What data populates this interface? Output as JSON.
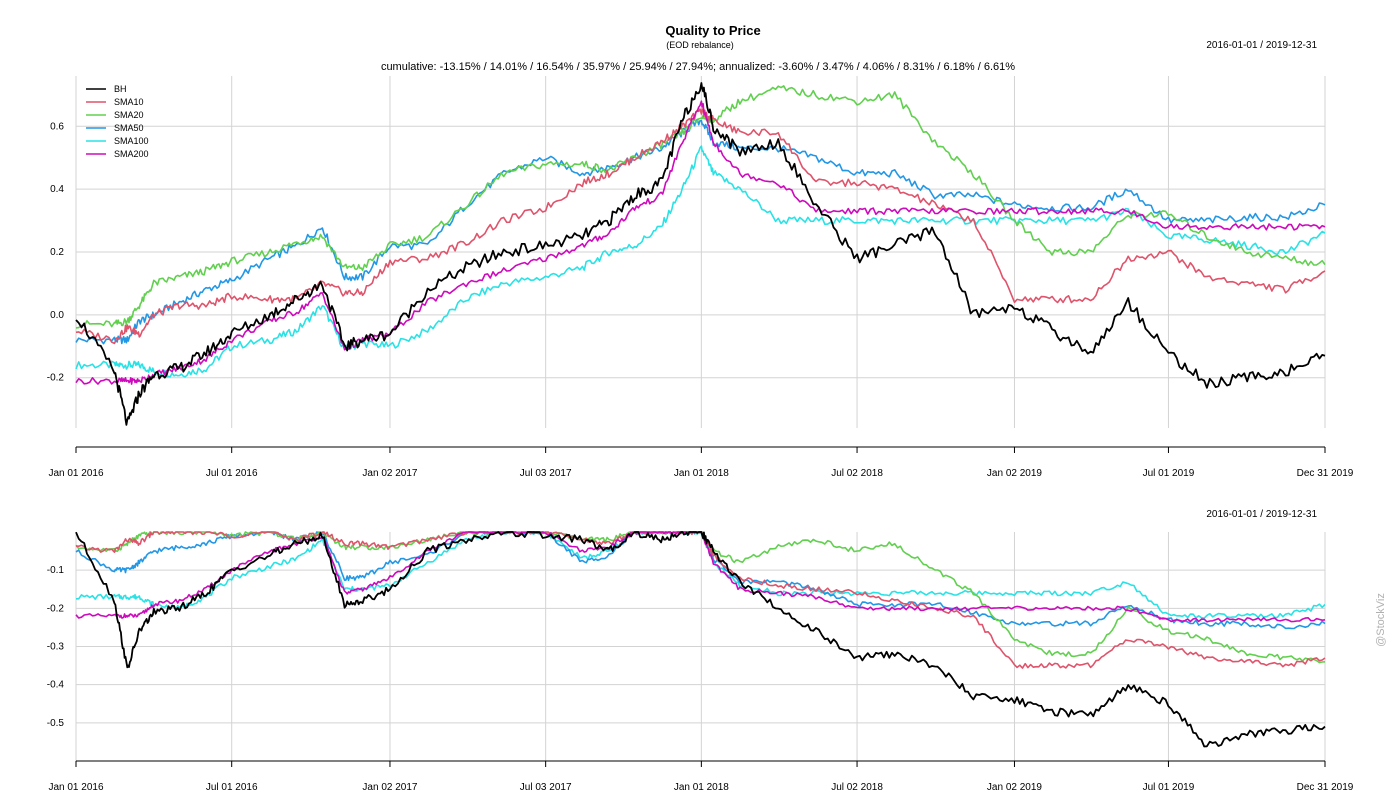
{
  "header": {
    "title": "Quality to Price",
    "subtitle": "(EOD rebalance)",
    "summary": "cumulative: -13.15% / 14.01% / 16.54% / 35.97% / 25.94% / 27.94%; annualized: -3.60% / 3.47% / 4.06% / 8.31% / 6.18% / 6.61%",
    "date_range_top": "2016-01-01 / 2019-12-31",
    "date_range_bottom": "2016-01-01 / 2019-12-31"
  },
  "watermark": "@StockViz",
  "colors": {
    "BH": "#000000",
    "SMA10": "#df536b",
    "SMA20": "#61d04f",
    "SMA50": "#2297e6",
    "SMA100": "#28e2e5",
    "SMA200": "#cd0bbc",
    "grid": "#d3d3d3"
  },
  "chart_data": [
    {
      "type": "line",
      "title": "Quality to Price",
      "subtitle": "(EOD rebalance)",
      "x_ticks": [
        "Jan 01 2016",
        "Jul 01 2016",
        "Jan 02 2017",
        "Jul 03 2017",
        "Jan 01 2018",
        "Jul 02 2018",
        "Jan 02 2019",
        "Jul 01 2019",
        "Dec 31 2019"
      ],
      "y_ticks": [
        -0.2,
        0.0,
        0.2,
        0.4,
        0.6
      ],
      "ylim": [
        -0.36,
        0.76
      ],
      "legend_position": "top-left",
      "grid": true,
      "x": [
        "2016-01-01",
        "2016-02-15",
        "2016-03-01",
        "2016-03-15",
        "2016-04-01",
        "2016-05-01",
        "2016-06-01",
        "2016-07-01",
        "2016-08-15",
        "2016-09-15",
        "2016-10-15",
        "2016-11-10",
        "2016-12-01",
        "2017-01-02",
        "2017-02-15",
        "2017-04-01",
        "2017-05-15",
        "2017-07-03",
        "2017-08-15",
        "2017-09-15",
        "2017-10-15",
        "2017-11-15",
        "2017-12-10",
        "2018-01-01",
        "2018-01-15",
        "2018-02-15",
        "2018-04-01",
        "2018-05-15",
        "2018-07-02",
        "2018-08-15",
        "2018-10-01",
        "2018-11-15",
        "2019-01-02",
        "2019-02-15",
        "2019-04-01",
        "2019-05-15",
        "2019-07-01",
        "2019-08-15",
        "2019-10-01",
        "2019-11-15",
        "2019-12-31"
      ],
      "series": [
        {
          "name": "BH",
          "values": [
            0.0,
            -0.18,
            -0.35,
            -0.25,
            -0.19,
            -0.17,
            -0.12,
            -0.06,
            0.0,
            0.05,
            0.1,
            -0.1,
            -0.08,
            -0.06,
            0.08,
            0.15,
            0.2,
            0.22,
            0.25,
            0.3,
            0.38,
            0.42,
            0.62,
            0.74,
            0.6,
            0.52,
            0.55,
            0.35,
            0.18,
            0.22,
            0.27,
            0.0,
            0.03,
            -0.05,
            -0.12,
            0.04,
            -0.12,
            -0.22,
            -0.2,
            -0.18,
            -0.13
          ]
        },
        {
          "name": "SMA10",
          "values": [
            -0.05,
            -0.08,
            -0.04,
            -0.06,
            0.0,
            0.03,
            0.03,
            0.06,
            0.05,
            0.05,
            0.1,
            0.07,
            0.07,
            0.17,
            0.18,
            0.23,
            0.3,
            0.34,
            0.42,
            0.45,
            0.5,
            0.55,
            0.6,
            0.65,
            0.62,
            0.58,
            0.58,
            0.42,
            0.42,
            0.4,
            0.35,
            0.3,
            0.05,
            0.05,
            0.05,
            0.18,
            0.2,
            0.12,
            0.1,
            0.08,
            0.14
          ]
        },
        {
          "name": "SMA20",
          "values": [
            -0.03,
            -0.03,
            -0.02,
            0.03,
            0.1,
            0.12,
            0.14,
            0.17,
            0.2,
            0.23,
            0.25,
            0.15,
            0.15,
            0.22,
            0.25,
            0.35,
            0.45,
            0.48,
            0.48,
            0.46,
            0.5,
            0.54,
            0.58,
            0.63,
            0.62,
            0.68,
            0.72,
            0.7,
            0.68,
            0.7,
            0.55,
            0.45,
            0.3,
            0.2,
            0.2,
            0.32,
            0.32,
            0.25,
            0.2,
            0.18,
            0.16
          ]
        },
        {
          "name": "SMA50",
          "values": [
            -0.08,
            -0.08,
            -0.08,
            -0.02,
            0.0,
            0.04,
            0.08,
            0.11,
            0.18,
            0.22,
            0.28,
            0.12,
            0.12,
            0.22,
            0.22,
            0.35,
            0.45,
            0.5,
            0.45,
            0.47,
            0.5,
            0.53,
            0.58,
            0.62,
            0.55,
            0.53,
            0.53,
            0.5,
            0.45,
            0.45,
            0.38,
            0.38,
            0.35,
            0.34,
            0.34,
            0.4,
            0.3,
            0.3,
            0.31,
            0.31,
            0.35
          ]
        },
        {
          "name": "SMA100",
          "values": [
            -0.16,
            -0.16,
            -0.16,
            -0.16,
            -0.18,
            -0.19,
            -0.17,
            -0.1,
            -0.08,
            -0.05,
            0.03,
            -0.11,
            -0.09,
            -0.1,
            -0.05,
            0.05,
            0.1,
            0.12,
            0.15,
            0.2,
            0.22,
            0.28,
            0.4,
            0.53,
            0.45,
            0.4,
            0.3,
            0.3,
            0.3,
            0.3,
            0.3,
            0.3,
            0.3,
            0.3,
            0.3,
            0.33,
            0.25,
            0.24,
            0.22,
            0.2,
            0.26
          ]
        },
        {
          "name": "SMA200",
          "values": [
            -0.21,
            -0.21,
            -0.21,
            -0.21,
            -0.19,
            -0.17,
            -0.14,
            -0.08,
            -0.02,
            0.01,
            0.07,
            -0.11,
            -0.08,
            -0.06,
            0.04,
            0.1,
            0.14,
            0.18,
            0.22,
            0.26,
            0.34,
            0.38,
            0.55,
            0.68,
            0.55,
            0.45,
            0.42,
            0.33,
            0.33,
            0.33,
            0.33,
            0.33,
            0.33,
            0.33,
            0.33,
            0.33,
            0.28,
            0.28,
            0.28,
            0.28,
            0.28
          ]
        }
      ]
    },
    {
      "type": "line",
      "title": "",
      "x_ticks": [
        "Jan 01 2016",
        "Jul 01 2016",
        "Jan 02 2017",
        "Jul 03 2017",
        "Jan 01 2018",
        "Jul 02 2018",
        "Jan 02 2019",
        "Jul 01 2019",
        "Dec 31 2019"
      ],
      "y_ticks": [
        -0.1,
        -0.2,
        -0.3,
        -0.4,
        -0.5
      ],
      "ylim": [
        -0.6,
        0.0
      ],
      "grid": true,
      "x": [
        "2016-01-01",
        "2016-02-15",
        "2016-03-01",
        "2016-03-15",
        "2016-04-01",
        "2016-05-01",
        "2016-06-01",
        "2016-07-01",
        "2016-08-15",
        "2016-09-15",
        "2016-10-15",
        "2016-11-10",
        "2016-12-01",
        "2017-01-02",
        "2017-02-15",
        "2017-04-01",
        "2017-05-15",
        "2017-07-03",
        "2017-08-15",
        "2017-09-15",
        "2017-10-15",
        "2017-11-15",
        "2017-12-10",
        "2018-01-01",
        "2018-01-15",
        "2018-02-15",
        "2018-04-01",
        "2018-05-15",
        "2018-07-02",
        "2018-08-15",
        "2018-10-01",
        "2018-11-15",
        "2019-01-02",
        "2019-02-15",
        "2019-04-01",
        "2019-05-15",
        "2019-07-01",
        "2019-08-15",
        "2019-10-01",
        "2019-11-15",
        "2019-12-31"
      ],
      "series": [
        {
          "name": "BH",
          "values": [
            0.0,
            -0.18,
            -0.36,
            -0.26,
            -0.21,
            -0.2,
            -0.16,
            -0.1,
            -0.06,
            -0.03,
            -0.01,
            -0.19,
            -0.18,
            -0.15,
            -0.05,
            -0.02,
            0.0,
            -0.01,
            -0.02,
            -0.05,
            0.0,
            -0.02,
            0.0,
            0.0,
            -0.05,
            -0.13,
            -0.2,
            -0.26,
            -0.33,
            -0.32,
            -0.35,
            -0.43,
            -0.44,
            -0.47,
            -0.48,
            -0.4,
            -0.45,
            -0.56,
            -0.53,
            -0.52,
            -0.51
          ]
        },
        {
          "name": "SMA10",
          "values": [
            -0.04,
            -0.05,
            -0.02,
            -0.03,
            0.0,
            0.0,
            0.0,
            -0.01,
            0.0,
            -0.02,
            0.0,
            -0.03,
            -0.03,
            -0.04,
            -0.02,
            0.0,
            0.0,
            0.0,
            -0.02,
            -0.03,
            0.0,
            0.0,
            0.0,
            0.0,
            -0.06,
            -0.12,
            -0.14,
            -0.15,
            -0.16,
            -0.18,
            -0.2,
            -0.22,
            -0.35,
            -0.35,
            -0.35,
            -0.28,
            -0.3,
            -0.33,
            -0.34,
            -0.35,
            -0.33
          ]
        },
        {
          "name": "SMA20",
          "values": [
            -0.04,
            -0.05,
            -0.03,
            -0.01,
            0.0,
            0.0,
            0.0,
            -0.01,
            0.0,
            -0.02,
            0.0,
            -0.04,
            -0.04,
            -0.04,
            -0.02,
            0.0,
            0.0,
            0.0,
            -0.02,
            -0.02,
            0.0,
            0.0,
            0.0,
            0.0,
            -0.05,
            -0.08,
            -0.04,
            -0.02,
            -0.05,
            -0.03,
            -0.1,
            -0.16,
            -0.28,
            -0.32,
            -0.32,
            -0.2,
            -0.26,
            -0.28,
            -0.32,
            -0.33,
            -0.34
          ]
        },
        {
          "name": "SMA50",
          "values": [
            -0.05,
            -0.1,
            -0.1,
            -0.08,
            -0.05,
            -0.04,
            -0.03,
            -0.01,
            0.0,
            -0.02,
            0.0,
            -0.12,
            -0.12,
            -0.08,
            -0.06,
            0.0,
            0.0,
            0.0,
            -0.08,
            -0.06,
            0.0,
            0.0,
            0.0,
            0.0,
            -0.07,
            -0.13,
            -0.13,
            -0.15,
            -0.19,
            -0.19,
            -0.19,
            -0.21,
            -0.24,
            -0.24,
            -0.24,
            -0.19,
            -0.23,
            -0.24,
            -0.24,
            -0.25,
            -0.24
          ]
        },
        {
          "name": "SMA100",
          "values": [
            -0.17,
            -0.17,
            -0.17,
            -0.17,
            -0.19,
            -0.2,
            -0.17,
            -0.12,
            -0.09,
            -0.07,
            -0.02,
            -0.15,
            -0.15,
            -0.14,
            -0.08,
            -0.02,
            0.0,
            0.0,
            -0.07,
            -0.05,
            0.0,
            0.0,
            0.0,
            0.0,
            -0.08,
            -0.14,
            -0.16,
            -0.16,
            -0.16,
            -0.16,
            -0.16,
            -0.16,
            -0.16,
            -0.16,
            -0.16,
            -0.13,
            -0.22,
            -0.22,
            -0.22,
            -0.22,
            -0.19
          ]
        },
        {
          "name": "SMA200",
          "values": [
            -0.22,
            -0.22,
            -0.22,
            -0.22,
            -0.19,
            -0.18,
            -0.15,
            -0.1,
            -0.05,
            -0.03,
            -0.01,
            -0.16,
            -0.15,
            -0.12,
            -0.05,
            0.0,
            0.0,
            0.0,
            -0.05,
            -0.04,
            0.0,
            0.0,
            0.0,
            0.0,
            -0.08,
            -0.15,
            -0.16,
            -0.17,
            -0.2,
            -0.2,
            -0.2,
            -0.2,
            -0.2,
            -0.2,
            -0.2,
            -0.2,
            -0.23,
            -0.23,
            -0.23,
            -0.23,
            -0.23
          ]
        }
      ]
    }
  ]
}
